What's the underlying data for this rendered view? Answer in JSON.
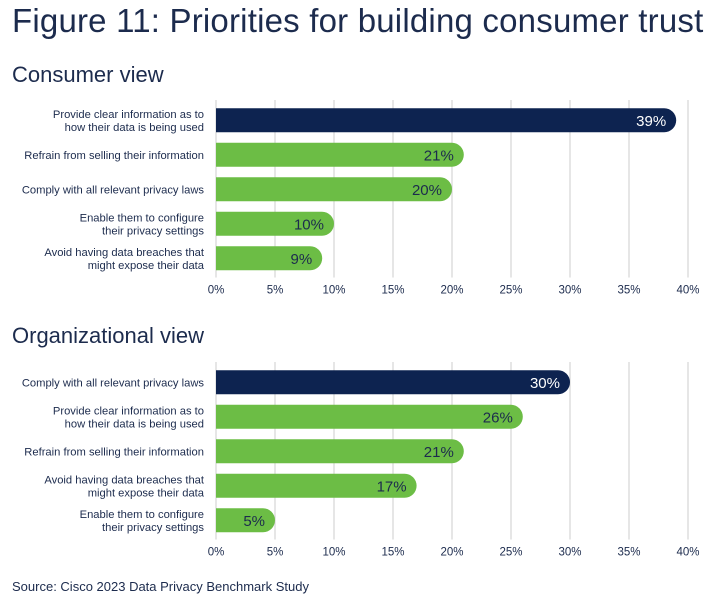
{
  "title": "Figure 11: Priorities for building consumer trust",
  "source": "Source: Cisco 2023 Data Privacy Benchmark Study",
  "colors": {
    "highlight": "#0d2350",
    "bar": "#6cbd45",
    "grid": "#cccccc",
    "text": "#1c2b4d"
  },
  "chart_data": [
    {
      "type": "bar",
      "orientation": "horizontal",
      "title": "Consumer view",
      "categories": [
        "Provide clear information as to\nhow their data is being used",
        "Refrain from selling their information",
        "Comply with all relevant privacy laws",
        "Enable them to configure\ntheir privacy settings",
        "Avoid having data breaches that\nmight expose their data"
      ],
      "values": [
        39,
        21,
        20,
        10,
        9
      ],
      "value_labels": [
        "39%",
        "21%",
        "20%",
        "10%",
        "9%"
      ],
      "highlight_index": 0,
      "xlim": [
        0,
        40
      ],
      "ticks": [
        0,
        5,
        10,
        15,
        20,
        25,
        30,
        35,
        40
      ],
      "tick_labels": [
        "0%",
        "5%",
        "10%",
        "15%",
        "20%",
        "25%",
        "30%",
        "35%",
        "40%"
      ],
      "grid": true
    },
    {
      "type": "bar",
      "orientation": "horizontal",
      "title": "Organizational view",
      "categories": [
        "Comply with all relevant privacy laws",
        "Provide clear information as to\nhow their data is being used",
        "Refrain from selling their information",
        "Avoid having data breaches that\nmight expose their data",
        "Enable them to configure\ntheir privacy settings"
      ],
      "values": [
        30,
        26,
        21,
        17,
        5
      ],
      "value_labels": [
        "30%",
        "26%",
        "21%",
        "17%",
        "5%"
      ],
      "highlight_index": 0,
      "xlim": [
        0,
        40
      ],
      "ticks": [
        0,
        5,
        10,
        15,
        20,
        25,
        30,
        35,
        40
      ],
      "tick_labels": [
        "0%",
        "5%",
        "10%",
        "15%",
        "20%",
        "25%",
        "30%",
        "35%",
        "40%"
      ],
      "grid": true
    }
  ]
}
